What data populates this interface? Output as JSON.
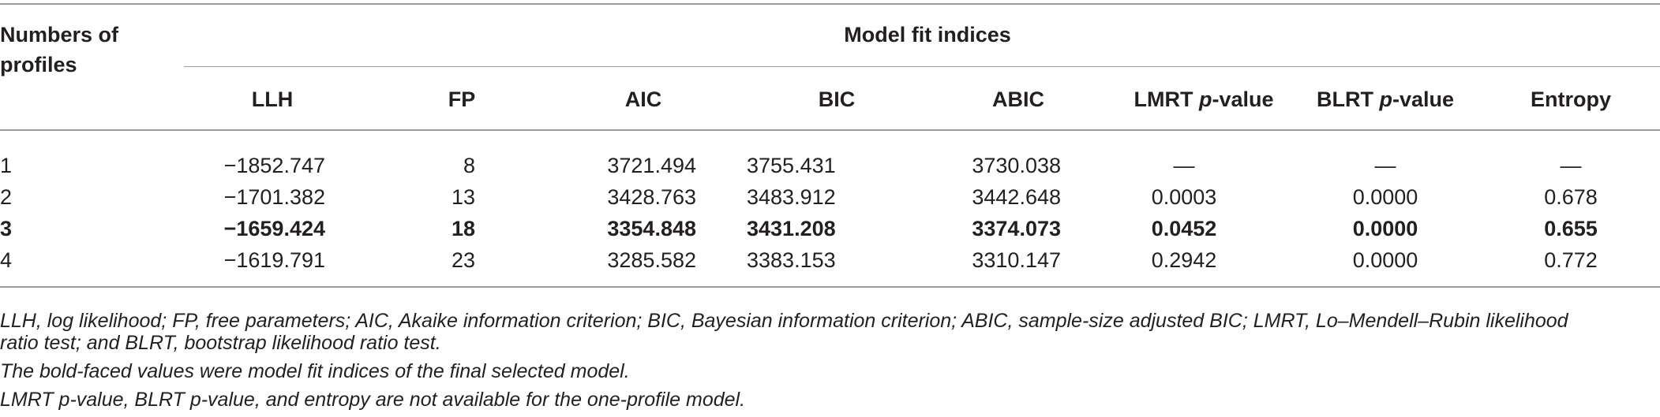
{
  "table": {
    "header": {
      "profiles_label_line1": "Numbers of",
      "profiles_label_line2": "profiles",
      "group_label": "Model fit indices",
      "columns": {
        "llh": "LLH",
        "fp": "FP",
        "aic": "AIC",
        "bic": "BIC",
        "abic": "ABIC",
        "lmrt_prefix": "LMRT ",
        "lmrt_p": "p",
        "lmrt_suffix": "-value",
        "blrt_prefix": "BLRT ",
        "blrt_p": "p",
        "blrt_suffix": "-value",
        "entropy": "Entropy"
      }
    },
    "rows": [
      {
        "profiles": "1",
        "llh": "−1852.747",
        "fp": "8",
        "aic": "3721.494",
        "bic": "3755.431",
        "abic": "3730.038",
        "lmrt": "—",
        "blrt": "—",
        "entropy": "—",
        "bold": false
      },
      {
        "profiles": "2",
        "llh": "−1701.382",
        "fp": "13",
        "aic": "3428.763",
        "bic": "3483.912",
        "abic": "3442.648",
        "lmrt": "0.0003",
        "blrt": "0.0000",
        "entropy": "0.678",
        "bold": false
      },
      {
        "profiles": "3",
        "llh": "−1659.424",
        "fp": "18",
        "aic": "3354.848",
        "bic": "3431.208",
        "abic": "3374.073",
        "lmrt": "0.0452",
        "blrt": "0.0000",
        "entropy": "0.655",
        "bold": true
      },
      {
        "profiles": "4",
        "llh": "−1619.791",
        "fp": "23",
        "aic": "3285.582",
        "bic": "3383.153",
        "abic": "3310.147",
        "lmrt": "0.2942",
        "blrt": "0.0000",
        "entropy": "0.772",
        "bold": false
      }
    ]
  },
  "notes": {
    "abbreviations_line1": "LLH, log likelihood; FP, free parameters; AIC, Akaike information criterion; BIC, Bayesian information criterion; ABIC, sample-size adjusted BIC; LMRT, Lo–Mendell–Rubin likelihood",
    "abbreviations_line2": "ratio test; and BLRT, bootstrap likelihood ratio test.",
    "bold_note": "The bold-faced values were model fit indices of the final selected model.",
    "availability_note": "LMRT p-value, BLRT p-value, and entropy are not available for the one-profile model."
  }
}
